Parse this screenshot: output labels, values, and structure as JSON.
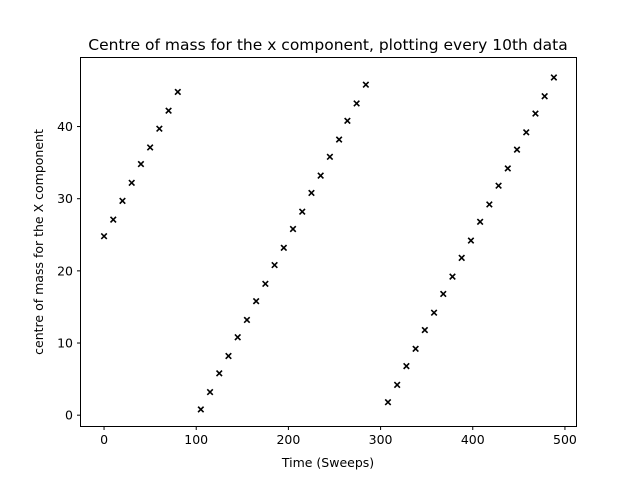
{
  "chart_data": {
    "type": "scatter",
    "title": "Centre of mass for the x component, plotting every 10th data",
    "xlabel": "Time (Sweeps)",
    "ylabel": "centre of mass for the X component",
    "xlim": [
      -25,
      512
    ],
    "ylim": [
      -1.5,
      49.5
    ],
    "xticks": [
      0,
      100,
      200,
      300,
      400,
      500
    ],
    "yticks": [
      0,
      10,
      20,
      30,
      40
    ],
    "grid": false,
    "marker": "x",
    "marker_color": "#000000",
    "series": [
      {
        "x": [
          0,
          10,
          20,
          30,
          40,
          50,
          60,
          70,
          80,
          105,
          115,
          125,
          135,
          145,
          155,
          165,
          175,
          185,
          195,
          205,
          215,
          225,
          235,
          245,
          255,
          264,
          274,
          284,
          308,
          318,
          328,
          338,
          348,
          358,
          368,
          378,
          388,
          398,
          408,
          418,
          428,
          438,
          448,
          458,
          468,
          478,
          488
        ],
        "y": [
          24.8,
          27.1,
          29.7,
          32.2,
          34.8,
          37.1,
          39.7,
          42.2,
          44.8,
          0.8,
          3.2,
          5.8,
          8.2,
          10.8,
          13.2,
          15.8,
          18.2,
          20.8,
          23.2,
          25.8,
          28.2,
          30.8,
          33.2,
          35.8,
          38.2,
          40.8,
          43.2,
          45.8,
          1.8,
          4.2,
          6.8,
          9.2,
          11.8,
          14.2,
          16.8,
          19.2,
          21.8,
          24.2,
          26.8,
          29.2,
          31.8,
          34.2,
          36.8,
          39.2,
          41.8,
          44.2,
          46.8
        ]
      }
    ]
  }
}
